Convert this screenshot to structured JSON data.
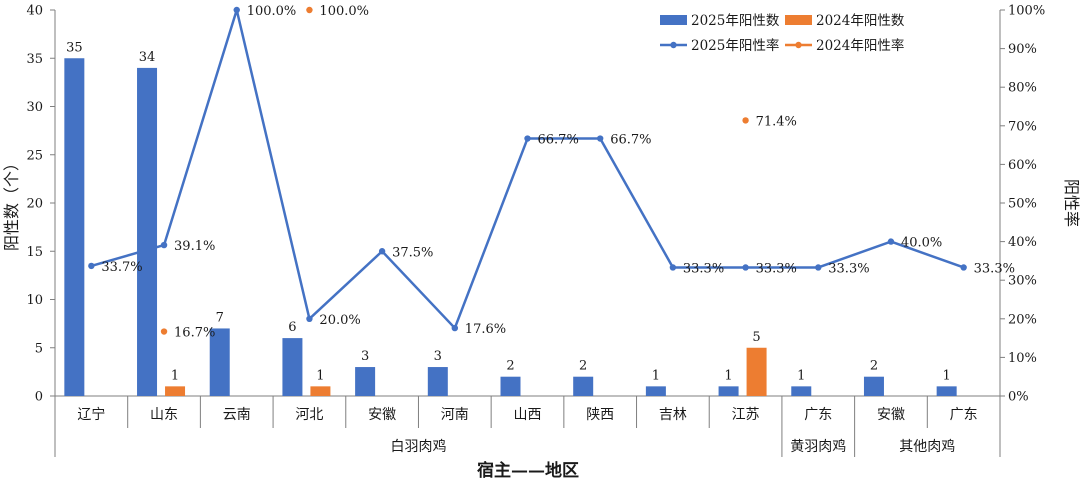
{
  "chart_data": {
    "type": "bar+line",
    "x_axis_title": "宿主——地区",
    "y_left_title": "阳性数（个）",
    "y_right_title": "阳性率",
    "y_left_range": [
      0,
      40
    ],
    "y_left_ticks": [
      "0",
      "5",
      "10",
      "15",
      "20",
      "25",
      "30",
      "35",
      "40"
    ],
    "y_right_range": [
      0,
      100
    ],
    "y_right_ticks": [
      "0%",
      "10%",
      "20%",
      "30%",
      "40%",
      "50%",
      "60%",
      "70%",
      "80%",
      "90%",
      "100%"
    ],
    "categories": [
      "辽宁",
      "山东",
      "云南",
      "河北",
      "安徽",
      "河南",
      "山西",
      "陕西",
      "吉林",
      "江苏",
      "广东",
      "安徽",
      "广东"
    ],
    "groups": [
      {
        "label": "白羽肉鸡",
        "start": 0,
        "end": 9
      },
      {
        "label": "黄羽肉鸡",
        "start": 10,
        "end": 10
      },
      {
        "label": "其他肉鸡",
        "start": 11,
        "end": 12
      }
    ],
    "legend_position": "top-right",
    "series": [
      {
        "name": "2025年阳性数",
        "kind": "bar",
        "axis": "left",
        "color": "#4472C4",
        "values": [
          35,
          34,
          7,
          6,
          3,
          3,
          2,
          2,
          1,
          1,
          1,
          2,
          1
        ],
        "labels": [
          "35",
          "34",
          "7",
          "6",
          "3",
          "3",
          "2",
          "2",
          "1",
          "1",
          "1",
          "2",
          "1"
        ]
      },
      {
        "name": "2024年阳性数",
        "kind": "bar",
        "axis": "left",
        "color": "#ED7D31",
        "values": [
          null,
          1,
          null,
          1,
          null,
          null,
          null,
          null,
          null,
          5,
          null,
          null,
          null
        ],
        "labels": [
          null,
          "1",
          null,
          "1",
          null,
          null,
          null,
          null,
          null,
          "5",
          null,
          null,
          null
        ]
      },
      {
        "name": "2025年阳性率",
        "kind": "line",
        "axis": "right",
        "color": "#4472C4",
        "values": [
          33.7,
          39.1,
          100.0,
          20.0,
          37.5,
          17.6,
          66.7,
          66.7,
          33.3,
          33.3,
          33.3,
          40.0,
          33.3
        ],
        "labels": [
          "33.7%",
          "39.1%",
          "100.0%",
          "20.0%",
          "37.5%",
          "17.6%",
          "66.7%",
          "66.7%",
          "33.3%",
          "33.3%",
          "33.3%",
          "40.0%",
          "33.3%"
        ]
      },
      {
        "name": "2024年阳性率",
        "kind": "line",
        "axis": "right",
        "color": "#ED7D31",
        "values": [
          null,
          16.7,
          null,
          100.0,
          null,
          null,
          null,
          null,
          null,
          71.4,
          null,
          null,
          null
        ],
        "labels": [
          null,
          "16.7%",
          null,
          "100.0%",
          null,
          null,
          null,
          null,
          null,
          "71.4%",
          null,
          null,
          null
        ]
      }
    ]
  }
}
